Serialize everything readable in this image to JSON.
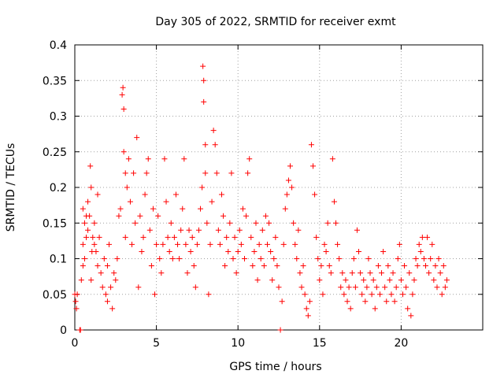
{
  "chart_data": {
    "type": "scatter",
    "title": "Day 305 of 2022, SRMTID for receiver exmt",
    "xlabel": "GPS time / hours",
    "ylabel": "SRMTID / TECUs",
    "xlim": [
      0,
      25
    ],
    "ylim": [
      0,
      0.4
    ],
    "xticks": [
      0,
      5,
      10,
      15,
      20
    ],
    "yticks": [
      0,
      0.05,
      0.1,
      0.15,
      0.2,
      0.25,
      0.3,
      0.35,
      0.4
    ],
    "xtick_labels": [
      "0",
      "5",
      "10",
      "15",
      "20"
    ],
    "ytick_labels": [
      "0",
      "0.05",
      "0.1",
      "0.15",
      "0.2",
      "0.25",
      "0.3",
      "0.35",
      "0.4"
    ],
    "grid": true,
    "marker": "+",
    "color": "#ff0000",
    "series": [
      {
        "name": "SRMTID",
        "points": [
          [
            0.0,
            0.05
          ],
          [
            0.05,
            0.04
          ],
          [
            0.1,
            0.03
          ],
          [
            0.15,
            0.05
          ],
          [
            0.3,
            0.0
          ],
          [
            0.35,
            0.0
          ],
          [
            0.4,
            0.07
          ],
          [
            0.5,
            0.09
          ],
          [
            0.5,
            0.12
          ],
          [
            0.5,
            0.17
          ],
          [
            0.6,
            0.15
          ],
          [
            0.6,
            0.1
          ],
          [
            0.7,
            0.16
          ],
          [
            0.7,
            0.13
          ],
          [
            0.8,
            0.14
          ],
          [
            0.8,
            0.18
          ],
          [
            0.9,
            0.16
          ],
          [
            0.95,
            0.23
          ],
          [
            1.0,
            0.2
          ],
          [
            1.0,
            0.07
          ],
          [
            1.05,
            0.11
          ],
          [
            1.1,
            0.13
          ],
          [
            1.2,
            0.12
          ],
          [
            1.2,
            0.15
          ],
          [
            1.3,
            0.11
          ],
          [
            1.4,
            0.19
          ],
          [
            1.4,
            0.09
          ],
          [
            1.5,
            0.13
          ],
          [
            1.6,
            0.08
          ],
          [
            1.7,
            0.06
          ],
          [
            1.8,
            0.1
          ],
          [
            1.9,
            0.05
          ],
          [
            2.0,
            0.09
          ],
          [
            2.0,
            0.04
          ],
          [
            2.1,
            0.12
          ],
          [
            2.2,
            0.06
          ],
          [
            2.3,
            0.03
          ],
          [
            2.4,
            0.08
          ],
          [
            2.5,
            0.07
          ],
          [
            2.6,
            0.1
          ],
          [
            2.7,
            0.16
          ],
          [
            2.8,
            0.17
          ],
          [
            2.9,
            0.33
          ],
          [
            2.95,
            0.34
          ],
          [
            3.0,
            0.31
          ],
          [
            3.0,
            0.25
          ],
          [
            3.1,
            0.22
          ],
          [
            3.1,
            0.13
          ],
          [
            3.2,
            0.2
          ],
          [
            3.3,
            0.24
          ],
          [
            3.4,
            0.18
          ],
          [
            3.5,
            0.12
          ],
          [
            3.6,
            0.22
          ],
          [
            3.7,
            0.15
          ],
          [
            3.8,
            0.27
          ],
          [
            3.9,
            0.06
          ],
          [
            4.0,
            0.16
          ],
          [
            4.1,
            0.11
          ],
          [
            4.2,
            0.13
          ],
          [
            4.3,
            0.19
          ],
          [
            4.4,
            0.22
          ],
          [
            4.5,
            0.24
          ],
          [
            4.6,
            0.14
          ],
          [
            4.7,
            0.09
          ],
          [
            4.8,
            0.17
          ],
          [
            4.9,
            0.05
          ],
          [
            5.0,
            0.12
          ],
          [
            5.1,
            0.16
          ],
          [
            5.2,
            0.1
          ],
          [
            5.3,
            0.08
          ],
          [
            5.4,
            0.12
          ],
          [
            5.5,
            0.24
          ],
          [
            5.6,
            0.18
          ],
          [
            5.7,
            0.13
          ],
          [
            5.8,
            0.11
          ],
          [
            5.9,
            0.15
          ],
          [
            6.0,
            0.1
          ],
          [
            6.1,
            0.13
          ],
          [
            6.2,
            0.19
          ],
          [
            6.3,
            0.12
          ],
          [
            6.4,
            0.1
          ],
          [
            6.5,
            0.14
          ],
          [
            6.6,
            0.17
          ],
          [
            6.7,
            0.24
          ],
          [
            6.8,
            0.12
          ],
          [
            6.9,
            0.08
          ],
          [
            7.0,
            0.14
          ],
          [
            7.1,
            0.11
          ],
          [
            7.2,
            0.13
          ],
          [
            7.3,
            0.09
          ],
          [
            7.4,
            0.06
          ],
          [
            7.5,
            0.12
          ],
          [
            7.6,
            0.14
          ],
          [
            7.7,
            0.17
          ],
          [
            7.8,
            0.2
          ],
          [
            7.85,
            0.37
          ],
          [
            7.9,
            0.35
          ],
          [
            7.9,
            0.32
          ],
          [
            8.0,
            0.26
          ],
          [
            8.0,
            0.22
          ],
          [
            8.1,
            0.15
          ],
          [
            8.2,
            0.05
          ],
          [
            8.3,
            0.12
          ],
          [
            8.4,
            0.18
          ],
          [
            8.5,
            0.28
          ],
          [
            8.6,
            0.26
          ],
          [
            8.7,
            0.22
          ],
          [
            8.8,
            0.14
          ],
          [
            8.9,
            0.12
          ],
          [
            9.0,
            0.19
          ],
          [
            9.1,
            0.16
          ],
          [
            9.2,
            0.09
          ],
          [
            9.3,
            0.13
          ],
          [
            9.4,
            0.11
          ],
          [
            9.5,
            0.15
          ],
          [
            9.6,
            0.22
          ],
          [
            9.7,
            0.1
          ],
          [
            9.8,
            0.13
          ],
          [
            9.9,
            0.08
          ],
          [
            10.0,
            0.11
          ],
          [
            10.1,
            0.14
          ],
          [
            10.2,
            0.12
          ],
          [
            10.3,
            0.17
          ],
          [
            10.4,
            0.1
          ],
          [
            10.5,
            0.16
          ],
          [
            10.6,
            0.22
          ],
          [
            10.7,
            0.24
          ],
          [
            10.8,
            0.13
          ],
          [
            10.9,
            0.09
          ],
          [
            11.0,
            0.11
          ],
          [
            11.1,
            0.15
          ],
          [
            11.2,
            0.07
          ],
          [
            11.3,
            0.12
          ],
          [
            11.4,
            0.1
          ],
          [
            11.5,
            0.14
          ],
          [
            11.6,
            0.09
          ],
          [
            11.7,
            0.16
          ],
          [
            11.8,
            0.12
          ],
          [
            11.9,
            0.15
          ],
          [
            12.0,
            0.11
          ],
          [
            12.1,
            0.07
          ],
          [
            12.2,
            0.1
          ],
          [
            12.3,
            0.13
          ],
          [
            12.4,
            0.09
          ],
          [
            12.5,
            0.06
          ],
          [
            12.6,
            0.0
          ],
          [
            12.7,
            0.04
          ],
          [
            12.8,
            0.12
          ],
          [
            12.9,
            0.17
          ],
          [
            13.0,
            0.19
          ],
          [
            13.1,
            0.21
          ],
          [
            13.2,
            0.23
          ],
          [
            13.3,
            0.2
          ],
          [
            13.4,
            0.15
          ],
          [
            13.5,
            0.12
          ],
          [
            13.6,
            0.1
          ],
          [
            13.7,
            0.14
          ],
          [
            13.8,
            0.08
          ],
          [
            13.9,
            0.06
          ],
          [
            14.0,
            0.09
          ],
          [
            14.1,
            0.05
          ],
          [
            14.2,
            0.03
          ],
          [
            14.3,
            0.02
          ],
          [
            14.4,
            0.04
          ],
          [
            14.5,
            0.26
          ],
          [
            14.6,
            0.23
          ],
          [
            14.7,
            0.19
          ],
          [
            14.8,
            0.13
          ],
          [
            14.9,
            0.1
          ],
          [
            15.0,
            0.07
          ],
          [
            15.1,
            0.09
          ],
          [
            15.2,
            0.05
          ],
          [
            15.3,
            0.12
          ],
          [
            15.4,
            0.11
          ],
          [
            15.5,
            0.15
          ],
          [
            15.6,
            0.09
          ],
          [
            15.7,
            0.08
          ],
          [
            15.8,
            0.24
          ],
          [
            15.9,
            0.18
          ],
          [
            16.0,
            0.15
          ],
          [
            16.1,
            0.12
          ],
          [
            16.2,
            0.1
          ],
          [
            16.3,
            0.06
          ],
          [
            16.4,
            0.08
          ],
          [
            16.5,
            0.05
          ],
          [
            16.6,
            0.07
          ],
          [
            16.7,
            0.04
          ],
          [
            16.8,
            0.06
          ],
          [
            16.9,
            0.03
          ],
          [
            17.0,
            0.08
          ],
          [
            17.1,
            0.1
          ],
          [
            17.2,
            0.06
          ],
          [
            17.3,
            0.14
          ],
          [
            17.4,
            0.11
          ],
          [
            17.5,
            0.08
          ],
          [
            17.6,
            0.05
          ],
          [
            17.7,
            0.07
          ],
          [
            17.8,
            0.04
          ],
          [
            17.9,
            0.06
          ],
          [
            18.0,
            0.1
          ],
          [
            18.1,
            0.08
          ],
          [
            18.2,
            0.05
          ],
          [
            18.3,
            0.07
          ],
          [
            18.4,
            0.03
          ],
          [
            18.5,
            0.06
          ],
          [
            18.6,
            0.09
          ],
          [
            18.7,
            0.05
          ],
          [
            18.8,
            0.08
          ],
          [
            18.9,
            0.11
          ],
          [
            19.0,
            0.06
          ],
          [
            19.1,
            0.04
          ],
          [
            19.2,
            0.09
          ],
          [
            19.3,
            0.07
          ],
          [
            19.4,
            0.05
          ],
          [
            19.5,
            0.08
          ],
          [
            19.6,
            0.04
          ],
          [
            19.7,
            0.06
          ],
          [
            19.8,
            0.1
          ],
          [
            19.9,
            0.12
          ],
          [
            20.0,
            0.07
          ],
          [
            20.1,
            0.05
          ],
          [
            20.2,
            0.09
          ],
          [
            20.3,
            0.06
          ],
          [
            20.4,
            0.03
          ],
          [
            20.5,
            0.08
          ],
          [
            20.6,
            0.02
          ],
          [
            20.7,
            0.05
          ],
          [
            20.8,
            0.07
          ],
          [
            20.9,
            0.1
          ],
          [
            21.0,
            0.09
          ],
          [
            21.1,
            0.12
          ],
          [
            21.2,
            0.11
          ],
          [
            21.3,
            0.13
          ],
          [
            21.4,
            0.1
          ],
          [
            21.5,
            0.09
          ],
          [
            21.6,
            0.13
          ],
          [
            21.7,
            0.08
          ],
          [
            21.8,
            0.1
          ],
          [
            21.9,
            0.12
          ],
          [
            22.0,
            0.07
          ],
          [
            22.1,
            0.09
          ],
          [
            22.2,
            0.06
          ],
          [
            22.3,
            0.1
          ],
          [
            22.4,
            0.08
          ],
          [
            22.5,
            0.05
          ],
          [
            22.6,
            0.09
          ],
          [
            22.7,
            0.06
          ],
          [
            22.8,
            0.07
          ]
        ]
      }
    ]
  }
}
